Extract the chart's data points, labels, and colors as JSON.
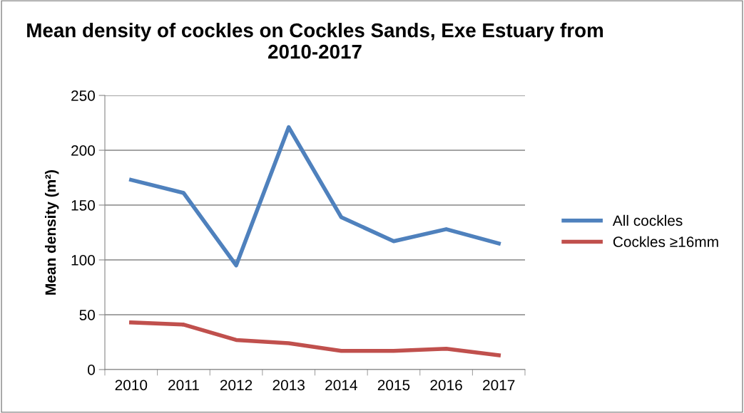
{
  "chart_data": {
    "type": "line",
    "title": "Mean density of cockles on Cockles Sands, Exe Estuary from 2010-2017",
    "ylabel": "Mean density (m²)",
    "categories": [
      "2010",
      "2011",
      "2012",
      "2013",
      "2014",
      "2015",
      "2016",
      "2017"
    ],
    "series": [
      {
        "name": "All cockles",
        "color": "#4f81bd",
        "values": [
          173,
          161,
          95,
          221,
          139,
          117,
          128,
          115
        ]
      },
      {
        "name": "Cockles ≥16mm",
        "color": "#c0504d",
        "values": [
          43,
          41,
          27,
          24,
          17,
          17,
          19,
          13
        ]
      }
    ],
    "ylim": [
      0,
      250
    ],
    "yticks": [
      0,
      50,
      100,
      150,
      200,
      250
    ],
    "grid": "y",
    "legend": "right",
    "marker": "none",
    "line_style": "solid"
  }
}
